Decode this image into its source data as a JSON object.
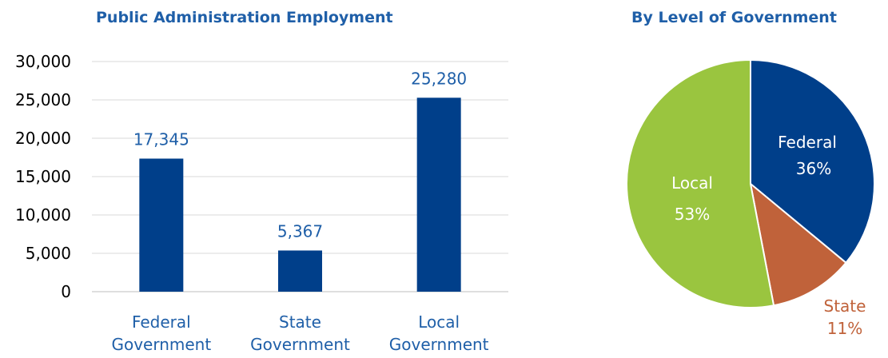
{
  "chart_data": [
    {
      "type": "bar",
      "title": "Public Administration Employment",
      "categories": [
        "Federal Government",
        "State Government",
        "Local Government"
      ],
      "values": [
        17345,
        5367,
        25280
      ],
      "data_labels": [
        "17,345",
        "5,367",
        "25,280"
      ],
      "yticks": [
        "0",
        "5,000",
        "10,000",
        "15,000",
        "20,000",
        "25,000",
        "30,000"
      ],
      "ylim": [
        0,
        30000
      ],
      "grid": true,
      "colors": {
        "bar": "#003f8a",
        "text": "#1f5fa8",
        "grid": "#d9d9d9"
      }
    },
    {
      "type": "pie",
      "title": "By Level of Government",
      "slices": [
        {
          "label": "Federal",
          "percent_label": "36%",
          "value": 36,
          "color": "#003f8a",
          "label_color": "#ffffff"
        },
        {
          "label": "State",
          "percent_label": "11%",
          "value": 11,
          "color": "#c0623a",
          "label_color": "#c0623a"
        },
        {
          "label": "Local",
          "percent_label": "53%",
          "value": 53,
          "color": "#9ac53f",
          "label_color": "#ffffff"
        }
      ]
    }
  ]
}
